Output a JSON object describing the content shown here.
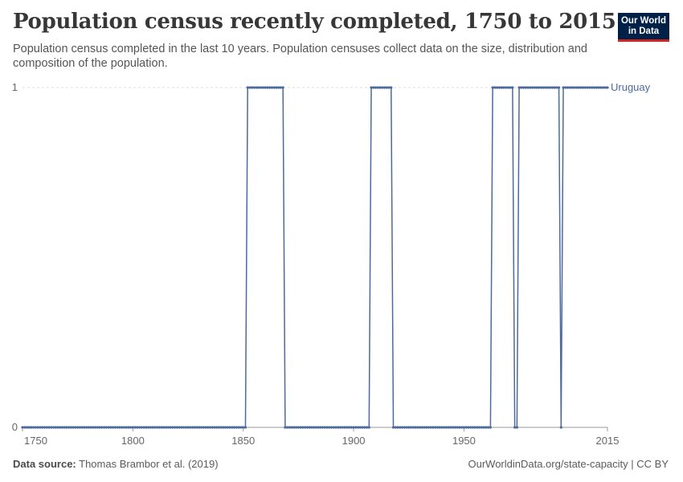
{
  "header": {
    "title": "Population census recently completed, 1750 to 2015",
    "subtitle": "Population census completed in the last 10 years. Population censuses collect data on the size, distribution and composition of the population."
  },
  "logo": {
    "line1": "Our World",
    "line2": "in Data",
    "bg_color": "#002147",
    "accent_color": "#ce261e"
  },
  "footer": {
    "source_label": "Data source:",
    "source_text": "Thomas Brambor et al. (2019)",
    "right_text": "OurWorldinData.org/state-capacity | CC BY"
  },
  "colors": {
    "series": "#4c6a9c",
    "grid": "#dddddd",
    "axis": "#999999"
  },
  "chart_data": {
    "type": "line",
    "title": "Population census recently completed, 1750 to 2015",
    "xlabel": "",
    "ylabel": "",
    "xlim": [
      1750,
      2015
    ],
    "ylim": [
      0,
      1
    ],
    "x_ticks": [
      1750,
      1800,
      1850,
      1900,
      1950,
      2015
    ],
    "y_ticks": [
      0,
      1
    ],
    "grid": "horizontal dashed",
    "markers": true,
    "series": [
      {
        "name": "Uruguay",
        "segments": [
          {
            "from": 1750,
            "to": 1851,
            "value": 0
          },
          {
            "from": 1852,
            "to": 1868,
            "value": 1
          },
          {
            "from": 1869,
            "to": 1907,
            "value": 0
          },
          {
            "from": 1908,
            "to": 1917,
            "value": 1
          },
          {
            "from": 1918,
            "to": 1962,
            "value": 0
          },
          {
            "from": 1963,
            "to": 1972,
            "value": 1
          },
          {
            "from": 1973,
            "to": 1974,
            "value": 0
          },
          {
            "from": 1975,
            "to": 1993,
            "value": 1
          },
          {
            "from": 1994,
            "to": 1994,
            "value": 0
          },
          {
            "from": 1995,
            "to": 2015,
            "value": 1
          }
        ]
      }
    ]
  }
}
